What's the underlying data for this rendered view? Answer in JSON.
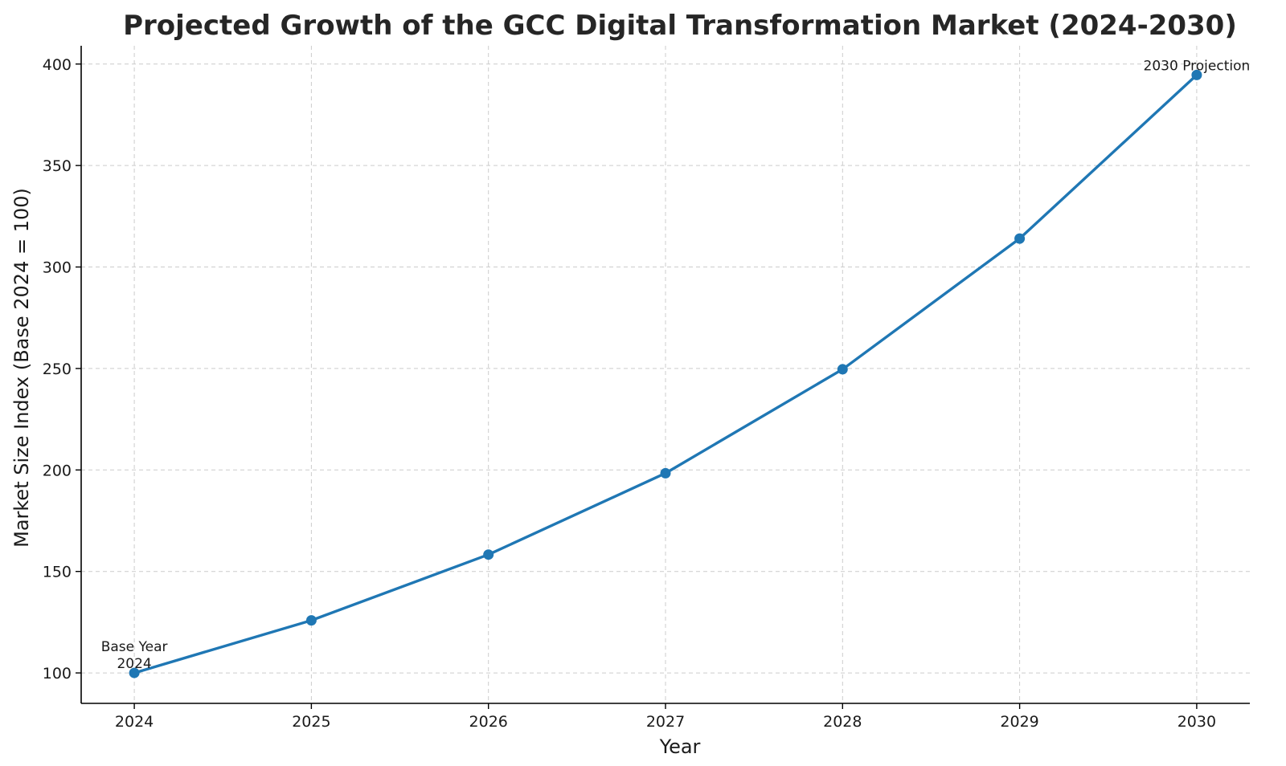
{
  "chart_data": {
    "type": "line",
    "title": "Projected Growth of the GCC Digital Transformation Market (2024-2030)",
    "xlabel": "Year",
    "ylabel": "Market Size Index (Base 2024 = 100)",
    "x": [
      2024,
      2025,
      2026,
      2027,
      2028,
      2029,
      2030
    ],
    "x_tick_labels": [
      "2024",
      "2025",
      "2026",
      "2027",
      "2028",
      "2029",
      "2030"
    ],
    "y_ticks": [
      100,
      150,
      200,
      250,
      300,
      350,
      400
    ],
    "y_tick_labels": [
      "100",
      "150",
      "200",
      "250",
      "300",
      "350",
      "400"
    ],
    "xlim": [
      2023.7,
      2030.3
    ],
    "ylim": [
      85,
      409
    ],
    "grid": true,
    "series": [
      {
        "values": [
          100,
          125.9,
          158.3,
          198.4,
          249.6,
          314.0,
          394.6
        ],
        "color": "#1f77b4",
        "marker": "circle"
      }
    ],
    "annotations": [
      {
        "x": 2024,
        "y": 100,
        "lines": [
          "Base Year",
          "2024"
        ]
      },
      {
        "x": 2030,
        "y": 394.6,
        "lines": [
          "2030 Projection"
        ]
      }
    ]
  }
}
